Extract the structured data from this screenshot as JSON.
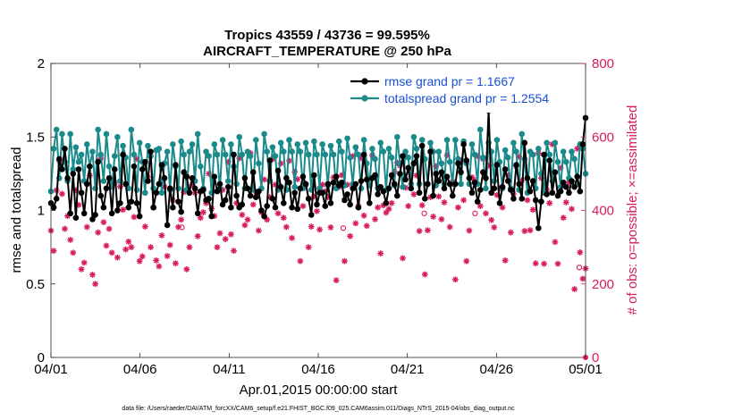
{
  "chart_data": {
    "type": "line",
    "title_line1": "Tropics 43559 / 43736 = 99.595%",
    "title_line2": "AIRCRAFT_TEMPERATURE @ 250 hPa",
    "ylabel_left": "rmse and totalspread",
    "ylabel_right": "# of obs: o=possible; ×=assimilated",
    "xlabel": "Apr.01,2015 00:00:00 start",
    "footnote": "data file: /Users/raeder/DAI/ATM_forcXX/CAM6_setup/f.e21.FHIST_BGC.f09_025.CAM6assim.011/Diags_NTrS_2015-04/obs_diag_output.nc",
    "xlim": [
      0,
      30
    ],
    "ylim_left": [
      0,
      2
    ],
    "ylim_right": [
      0,
      800
    ],
    "x_ticks": [
      0,
      5,
      10,
      15,
      20,
      25,
      30
    ],
    "x_tick_labels": [
      "04/01",
      "04/06",
      "04/11",
      "04/16",
      "04/21",
      "04/26",
      "05/01"
    ],
    "y_ticks_left": [
      0,
      0.5,
      1,
      1.5,
      2
    ],
    "y_tick_labels_left": [
      "0",
      "0.5",
      "1",
      "1.5",
      "2"
    ],
    "y_ticks_right": [
      0,
      200,
      400,
      600,
      800
    ],
    "y_tick_labels_right": [
      "0",
      "200",
      "400",
      "600",
      "800"
    ],
    "legend": [
      {
        "label": "rmse grand pr = 1.1667",
        "color": "#000000"
      },
      {
        "label": "totalspread grand pr = 1.2554",
        "color": "#1a8a8a"
      }
    ],
    "colors": {
      "rmse": "#000000",
      "spread": "#1a8a8a",
      "obs": "#d81b60",
      "legend_text": "#1a4fd6",
      "right_axis": "#d81b60"
    },
    "rmse": [
      1.05,
      1.02,
      1.08,
      1.35,
      1.28,
      1.42,
      1.22,
      0.98,
      1.25,
      0.95,
      1.28,
      1.12,
      0.98,
      1.18,
      1.3,
      0.94,
      0.97,
      1.33,
      1.1,
      1.02,
      1.15,
      1.22,
      0.98,
      1.28,
      1.0,
      1.05,
      1.38,
      1.18,
      1.02,
      1.06,
      1.3,
      1.05,
      0.96,
      1.28,
      1.33,
      1.2,
      1.4,
      1.02,
      1.12,
      1.18,
      1.31,
      1.22,
      0.9,
      1.15,
      1.02,
      1.31,
      1.06,
      0.99,
      1.26,
      1.23,
      1.12,
      1.22,
      1.15,
      0.98,
      1.13,
      1.14,
      1.07,
      1.08,
      0.96,
      1.23,
      1.13,
      1.18,
      1.04,
      1.07,
      1.16,
      1.02,
      1.38,
      1.1,
      1.02,
      1.04,
      1.22,
      1.15,
      1.1,
      1.26,
      1.09,
      1.13,
      1.0,
      0.96,
      1.03,
      1.34,
      1.08,
      1.02,
      1.27,
      1.16,
      1.05,
      1.22,
      1.19,
      1.02,
      1.12,
      1.01,
      1.15,
      1.23,
      1.18,
      1.08,
      0.97,
      1.24,
      1.04,
      1.12,
      1.12,
      1.03,
      1.18,
      1.05,
      1.19,
      1.23,
      1.17,
      1.19,
      1.07,
      1.11,
      1.04,
      1.15,
      1.18,
      1.02,
      1.2,
      1.38,
      1.21,
      1.05,
      1.22,
      1.24,
      1.11,
      1.16,
      1.13,
      1.05,
      1.15,
      1.24,
      1.18,
      1.1,
      1.25,
      1.37,
      1.21,
      1.29,
      1.15,
      1.32,
      1.37,
      1.12,
      1.44,
      1.08,
      1.18,
      1.4,
      1.1,
      1.25,
      1.2,
      1.26,
      1.15,
      1.23,
      1.18,
      1.1,
      1.18,
      1.32,
      1.26,
      1.45,
      1.34,
      1.22,
      1.12,
      1.19,
      1.06,
      1.14,
      1.26,
      1.22,
      1.68,
      1.12,
      1.15,
      1.31,
      1.05,
      1.16,
      1.28,
      1.2,
      1.14,
      1.08,
      1.31,
      1.18,
      1.08,
      1.46,
      1.22,
      1.13,
      1.2,
      1.07,
      0.88,
      1.06,
      1.38,
      1.11,
      1.34,
      1.12,
      1.26,
      1.1,
      1.13,
      1.19,
      1.16,
      1.12,
      1.2,
      1.16,
      1.23,
      1.13,
      1.45,
      1.63
    ],
    "totalspread": [
      1.13,
      1.42,
      1.55,
      1.22,
      1.52,
      1.33,
      1.2,
      1.52,
      1.28,
      1.43,
      1.33,
      1.38,
      1.2,
      1.45,
      1.3,
      1.4,
      1.15,
      1.55,
      1.38,
      1.2,
      1.52,
      1.3,
      1.16,
      1.37,
      1.5,
      1.2,
      1.44,
      1.36,
      1.15,
      1.55,
      1.38,
      1.14,
      1.46,
      1.33,
      1.12,
      1.44,
      1.37,
      1.15,
      1.41,
      1.42,
      1.12,
      1.32,
      1.4,
      1.14,
      1.45,
      1.3,
      1.15,
      1.47,
      1.38,
      1.14,
      1.4,
      1.45,
      1.2,
      1.52,
      1.3,
      1.15,
      1.4,
      1.37,
      1.12,
      1.45,
      1.38,
      1.15,
      1.48,
      1.38,
      1.2,
      1.45,
      1.3,
      1.18,
      1.5,
      1.38,
      1.15,
      1.4,
      1.37,
      1.14,
      1.48,
      1.32,
      1.15,
      1.52,
      1.4,
      1.2,
      1.43,
      1.37,
      1.14,
      1.46,
      1.4,
      1.14,
      1.48,
      1.4,
      1.16,
      1.45,
      1.4,
      1.15,
      1.46,
      1.38,
      1.14,
      1.47,
      1.38,
      1.15,
      1.45,
      1.38,
      1.17,
      1.44,
      1.38,
      1.15,
      1.47,
      1.4,
      1.17,
      1.49,
      1.36,
      1.18,
      1.43,
      1.38,
      1.15,
      1.48,
      1.32,
      1.17,
      1.42,
      1.35,
      1.15,
      1.46,
      1.4,
      1.14,
      1.42,
      1.36,
      1.17,
      1.5,
      1.32,
      1.16,
      1.4,
      1.36,
      1.18,
      1.5,
      1.42,
      1.18,
      1.48,
      1.35,
      1.18,
      1.46,
      1.4,
      1.17,
      1.4,
      1.32,
      1.18,
      1.48,
      1.33,
      1.18,
      1.48,
      1.35,
      1.18,
      1.47,
      1.32,
      1.18,
      1.45,
      1.38,
      1.18,
      1.55,
      1.36,
      1.15,
      1.46,
      1.4,
      1.2,
      1.48,
      1.33,
      1.15,
      1.41,
      1.36,
      1.15,
      1.46,
      1.4,
      1.14,
      1.52,
      1.35,
      1.12,
      1.4,
      1.38,
      1.15,
      1.42,
      1.25,
      1.12,
      1.46,
      1.38,
      1.2,
      1.46,
      1.33,
      1.16,
      1.4,
      1.33,
      1.22,
      1.4,
      1.35,
      1.18,
      1.45,
      1.42,
      1.25
    ],
    "obs_assimilated": [
      345,
      290,
      455,
      535,
      445,
      350,
      385,
      320,
      285,
      455,
      415,
      240,
      258,
      355,
      495,
      225,
      200,
      340,
      542,
      368,
      304,
      350,
      285,
      475,
      272,
      465,
      402,
      294,
      315,
      300,
      382,
      540,
      262,
      275,
      356,
      490,
      300,
      408,
      264,
      248,
      332,
      464,
      276,
      306,
      428,
      256,
      355,
      375,
      450,
      240,
      300,
      470,
      448,
      330,
      380,
      395,
      420,
      500,
      405,
      385,
      300,
      338,
      456,
      322,
      532,
      335,
      290,
      420,
      542,
      388,
      360,
      375,
      556,
      416,
      450,
      345,
      395,
      484,
      375,
      436,
      540,
      470,
      392,
      528,
      380,
      355,
      535,
      325,
      505,
      485,
      262,
      412,
      470,
      300,
      356,
      438,
      398,
      348,
      470,
      452,
      436,
      354,
      490,
      210,
      464,
      496,
      262,
      470,
      330,
      548,
      365,
      412,
      542,
      386,
      358,
      470,
      550,
      376,
      408,
      283,
      414,
      394,
      404,
      420,
      506,
      530,
      522,
      270,
      462,
      412,
      508,
      444,
      495,
      344,
      414,
      226,
      346,
      436,
      383,
      520,
      438,
      376,
      422,
      550,
      355,
      478,
      212,
      408,
      536,
      428,
      262,
      345,
      490,
      482,
      548,
      412,
      540,
      392,
      522,
      374,
      354,
      442,
      460,
      408,
      264,
      496,
      340,
      445,
      520,
      546,
      482,
      344,
      428,
      346,
      402,
      256,
      556,
      488,
      255,
      456,
      420,
      580,
      314,
      255,
      516,
      380,
      422,
      476,
      404,
      186,
      568,
      286,
      214,
      242,
      400
    ],
    "obs_possible_extra": [
      {
        "x": 7.35,
        "y": 354
      },
      {
        "x": 16.4,
        "y": 352
      },
      {
        "x": 20.95,
        "y": 392
      },
      {
        "x": 23.8,
        "y": 392
      },
      {
        "x": 29.65,
        "y": 245
      }
    ]
  }
}
